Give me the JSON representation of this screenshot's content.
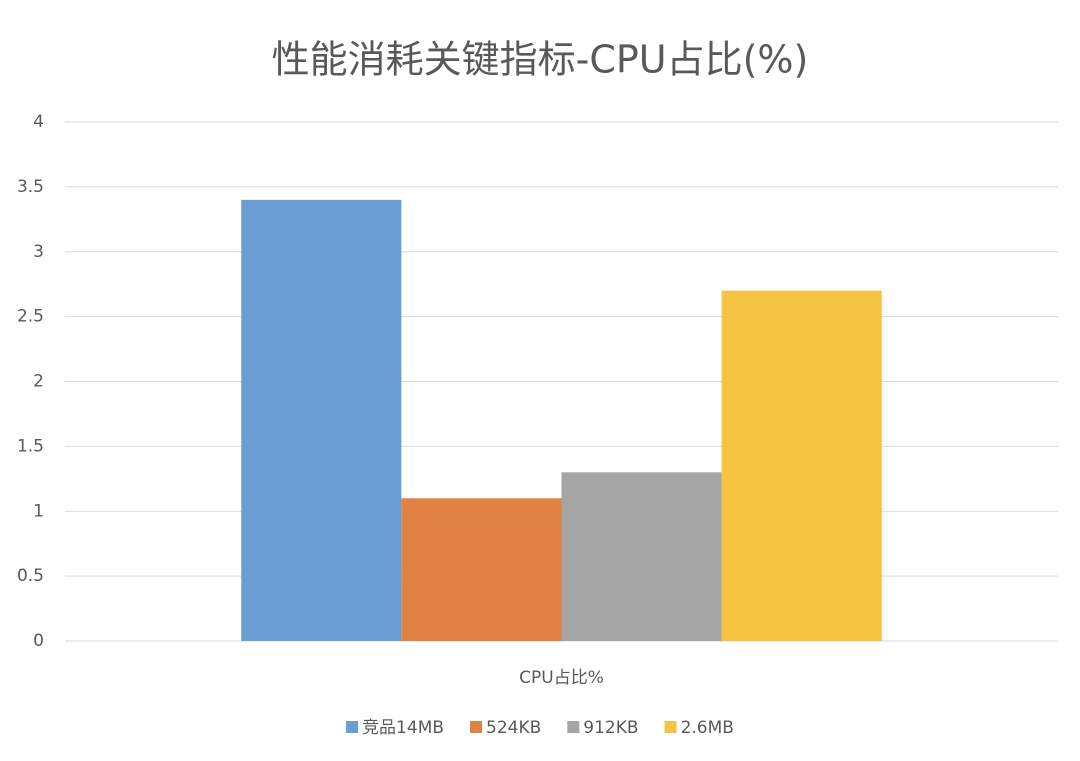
{
  "chart_data": {
    "type": "bar",
    "title": "性能消耗关键指标-CPU占比(%)",
    "categories": [
      "CPU占比%"
    ],
    "series": [
      {
        "name": "竞品14MB",
        "color": "#6a9dd2",
        "values": [
          3.4
        ]
      },
      {
        "name": "524KB",
        "color": "#e08244",
        "values": [
          1.1
        ]
      },
      {
        "name": "912KB",
        "color": "#a5a5a5",
        "values": [
          1.3
        ]
      },
      {
        "name": "2.6MB",
        "color": "#f5c242",
        "values": [
          2.7
        ]
      }
    ],
    "ylim": [
      0,
      4
    ],
    "yticks": [
      0,
      0.5,
      1,
      1.5,
      2,
      2.5,
      3,
      3.5,
      4
    ],
    "grid": true,
    "legend": "bottom"
  }
}
